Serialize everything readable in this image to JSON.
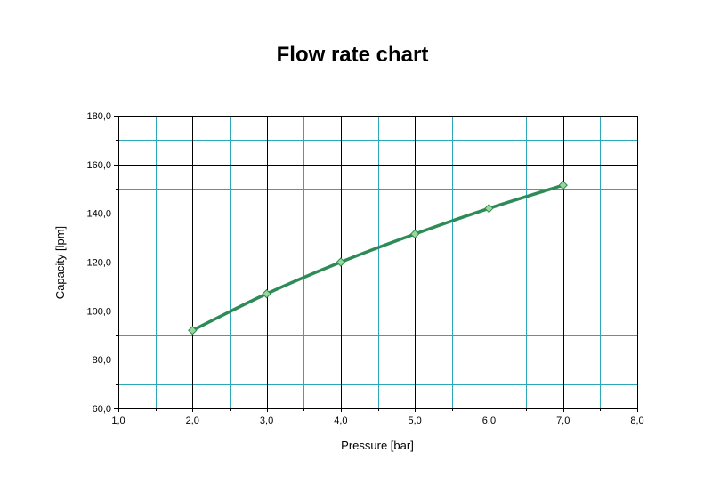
{
  "chart_data": {
    "type": "line",
    "title": "Flow rate chart",
    "xlabel": "Pressure [bar]",
    "ylabel": "Capacity [lpm]",
    "xlim": [
      1.0,
      8.0
    ],
    "ylim": [
      60.0,
      180.0
    ],
    "x_major_step": 1.0,
    "x_minor_step": 0.5,
    "y_major_step": 20.0,
    "y_minor_step": 10.0,
    "x_tick_labels": [
      "1,0",
      "2,0",
      "3,0",
      "4,0",
      "5,0",
      "6,0",
      "7,0",
      "8,0"
    ],
    "y_tick_labels": [
      "60,0",
      "80,0",
      "100,0",
      "120,0",
      "140,0",
      "160,0",
      "180,0"
    ],
    "grid": true,
    "legend": "none",
    "series": [
      {
        "x": [
          2.0,
          3.0,
          4.0,
          5.0,
          6.0,
          7.0
        ],
        "values": [
          92.0,
          107.0,
          120.0,
          131.5,
          142.0,
          151.5
        ],
        "color": "#2e8b57",
        "marker": "diamond",
        "marker_color": "#9ad89a"
      }
    ],
    "colors": {
      "major_grid": "#000000",
      "minor_grid": "#2aa7b8",
      "axis": "#000000"
    }
  }
}
